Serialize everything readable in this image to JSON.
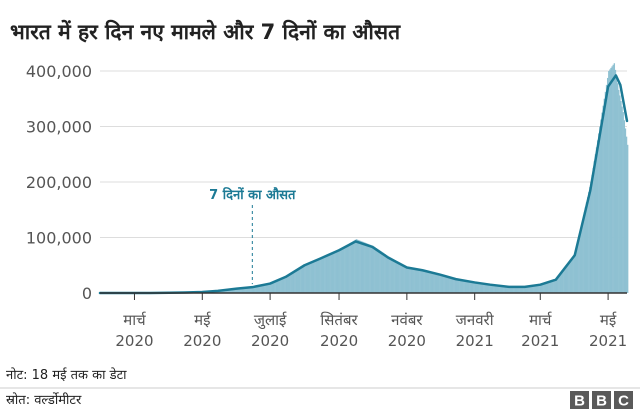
{
  "chart_data": {
    "type": "bar",
    "title": "भारत में हर दिन नए मामले और 7 दिनों का औसत",
    "xlabel": "",
    "ylabel": "",
    "ylim": [
      0,
      400000
    ],
    "yticks": [
      "0",
      "100,000",
      "200,000",
      "300,000",
      "400,000"
    ],
    "yticks_values": [
      0,
      100000,
      200000,
      300000,
      400000
    ],
    "grid": true,
    "xlim": [
      "2020-01-30",
      "2021-05-18"
    ],
    "xticks": [
      {
        "date": "2020-03-01",
        "month": "मार्च",
        "year": "2020"
      },
      {
        "date": "2020-05-01",
        "month": "मई",
        "year": "2020"
      },
      {
        "date": "2020-07-01",
        "month": "जुलाई",
        "year": "2020"
      },
      {
        "date": "2020-09-01",
        "month": "सितंबर",
        "year": "2020"
      },
      {
        "date": "2020-11-01",
        "month": "नवंबर",
        "year": "2020"
      },
      {
        "date": "2021-01-01",
        "month": "जनवरी",
        "year": "2021"
      },
      {
        "date": "2021-03-01",
        "month": "मार्च",
        "year": "2021"
      },
      {
        "date": "2021-05-01",
        "month": "मई",
        "year": "2021"
      }
    ],
    "series": [
      {
        "kind": "bar",
        "color": "#8fc1d2",
        "points": [
          [
            "2020-01-30",
            0
          ],
          [
            "2020-03-01",
            0
          ],
          [
            "2020-03-15",
            100
          ],
          [
            "2020-04-01",
            500
          ],
          [
            "2020-04-15",
            1000
          ],
          [
            "2020-05-01",
            2000
          ],
          [
            "2020-05-15",
            4000
          ],
          [
            "2020-06-01",
            8000
          ],
          [
            "2020-06-15",
            11000
          ],
          [
            "2020-07-01",
            18000
          ],
          [
            "2020-07-15",
            30000
          ],
          [
            "2020-08-01",
            52000
          ],
          [
            "2020-08-15",
            63000
          ],
          [
            "2020-09-01",
            78000
          ],
          [
            "2020-09-16",
            97000
          ],
          [
            "2020-10-01",
            85000
          ],
          [
            "2020-10-15",
            66000
          ],
          [
            "2020-11-01",
            46000
          ],
          [
            "2020-11-15",
            40000
          ],
          [
            "2020-12-01",
            33000
          ],
          [
            "2020-12-15",
            25000
          ],
          [
            "2021-01-01",
            20000
          ],
          [
            "2021-01-15",
            15000
          ],
          [
            "2021-02-01",
            11000
          ],
          [
            "2021-02-15",
            11500
          ],
          [
            "2021-03-01",
            16000
          ],
          [
            "2021-03-15",
            26000
          ],
          [
            "2021-04-01",
            72000
          ],
          [
            "2021-04-15",
            200000
          ],
          [
            "2021-05-01",
            400000
          ],
          [
            "2021-05-06",
            414000
          ],
          [
            "2021-05-10",
            366000
          ],
          [
            "2021-05-14",
            326000
          ],
          [
            "2021-05-18",
            267000
          ]
        ]
      },
      {
        "kind": "line",
        "name": "7 दिनों का औसत",
        "color": "#1c7a95",
        "points": [
          [
            "2020-01-30",
            0
          ],
          [
            "2020-03-01",
            0
          ],
          [
            "2020-03-15",
            100
          ],
          [
            "2020-04-01",
            400
          ],
          [
            "2020-04-15",
            900
          ],
          [
            "2020-05-01",
            1800
          ],
          [
            "2020-05-15",
            3800
          ],
          [
            "2020-06-01",
            7800
          ],
          [
            "2020-06-15",
            10500
          ],
          [
            "2020-07-01",
            17000
          ],
          [
            "2020-07-15",
            29000
          ],
          [
            "2020-08-01",
            50000
          ],
          [
            "2020-08-15",
            62000
          ],
          [
            "2020-09-01",
            77000
          ],
          [
            "2020-09-16",
            93000
          ],
          [
            "2020-10-01",
            83000
          ],
          [
            "2020-10-15",
            64000
          ],
          [
            "2020-11-01",
            46000
          ],
          [
            "2020-11-15",
            41000
          ],
          [
            "2020-12-01",
            33000
          ],
          [
            "2020-12-15",
            25000
          ],
          [
            "2021-01-01",
            19000
          ],
          [
            "2021-01-15",
            15000
          ],
          [
            "2021-02-01",
            11000
          ],
          [
            "2021-02-15",
            11000
          ],
          [
            "2021-03-01",
            15000
          ],
          [
            "2021-03-15",
            24000
          ],
          [
            "2021-04-01",
            68000
          ],
          [
            "2021-04-15",
            185000
          ],
          [
            "2021-05-01",
            372000
          ],
          [
            "2021-05-08",
            392000
          ],
          [
            "2021-05-12",
            375000
          ],
          [
            "2021-05-18",
            310000
          ]
        ]
      }
    ],
    "annotation": {
      "text": "7 दिनों का औसत",
      "date": "2020-06-15",
      "y": 10500,
      "color": "#1c7a95"
    }
  },
  "footer": {
    "note": "नोट: 18 मई तक का डेटा",
    "source": "स्रोत: वर्ल्डोमीटर",
    "logo_letters": [
      "B",
      "B",
      "C"
    ]
  }
}
